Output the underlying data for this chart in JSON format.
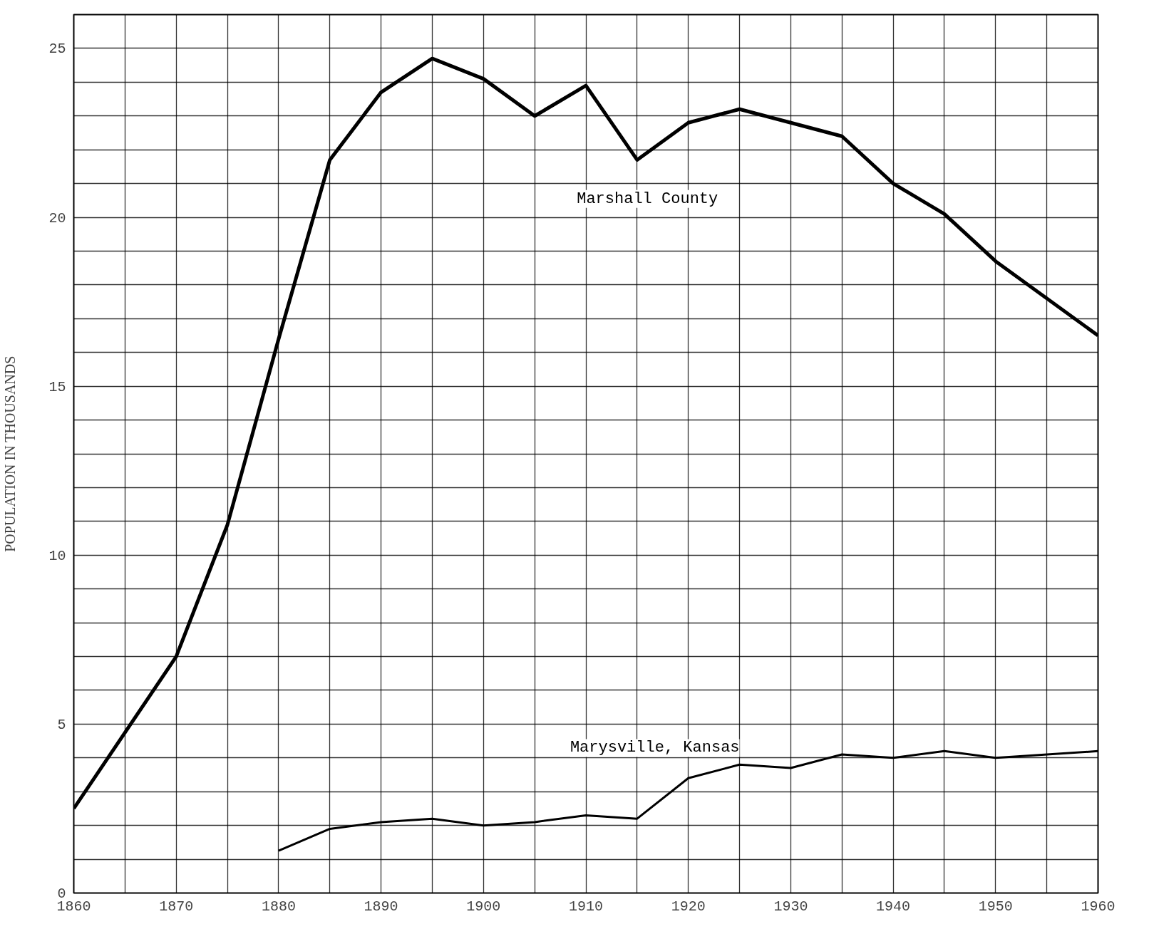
{
  "chart_data": {
    "type": "line",
    "ylabel": "POPULATION IN THOUSANDS",
    "grid": true,
    "marker": "none",
    "line_style": "solid",
    "xlim": [
      1860,
      1960
    ],
    "ylim": [
      0,
      26
    ],
    "xticks": [
      1860,
      {
        "value": 1865,
        "label": null
      },
      1870,
      {
        "value": 1875,
        "label": null
      },
      1880,
      {
        "value": 1885,
        "label": null
      },
      1890,
      {
        "value": 1895,
        "label": null
      },
      1900,
      {
        "value": 1905,
        "label": null
      },
      1910,
      {
        "value": 1915,
        "label": null
      },
      1920,
      {
        "value": 1925,
        "label": null
      },
      1930,
      {
        "value": 1935,
        "label": null
      },
      1940,
      {
        "value": 1945,
        "label": null
      },
      1950,
      {
        "value": 1955,
        "label": null
      },
      1960
    ],
    "yticks": [
      0,
      {
        "value": 1,
        "label": null
      },
      {
        "value": 2,
        "label": null
      },
      {
        "value": 3,
        "label": null
      },
      {
        "value": 4,
        "label": null
      },
      5,
      {
        "value": 6,
        "label": null
      },
      {
        "value": 7,
        "label": null
      },
      {
        "value": 8,
        "label": null
      },
      {
        "value": 9,
        "label": null
      },
      10,
      {
        "value": 11,
        "label": null
      },
      {
        "value": 12,
        "label": null
      },
      {
        "value": 13,
        "label": null
      },
      {
        "value": 14,
        "label": null
      },
      15,
      {
        "value": 16,
        "label": null
      },
      {
        "value": 17,
        "label": null
      },
      {
        "value": 18,
        "label": null
      },
      {
        "value": 19,
        "label": null
      },
      20,
      {
        "value": 21,
        "label": null
      },
      {
        "value": 22,
        "label": null
      },
      {
        "value": 23,
        "label": null
      },
      {
        "value": 24,
        "label": null
      },
      25,
      {
        "value": 26,
        "label": null
      }
    ],
    "series": [
      {
        "name": "Marshall County",
        "color": "#000000",
        "x": [
          1860,
          1870,
          1875,
          1880,
          1885,
          1890,
          1895,
          1900,
          1905,
          1910,
          1915,
          1920,
          1925,
          1935,
          1940,
          1945,
          1950,
          1960
        ],
        "values": [
          2.5,
          7.0,
          10.9,
          16.4,
          21.7,
          23.7,
          24.7,
          24.1,
          23.0,
          23.9,
          21.7,
          22.8,
          23.2,
          22.4,
          21.0,
          20.1,
          18.7,
          16.5
        ]
      },
      {
        "name": "Marysville, Kansas",
        "color": "#000000",
        "x": [
          1880,
          1885,
          1890,
          1895,
          1900,
          1905,
          1910,
          1915,
          1920,
          1925,
          1930,
          1935,
          1940,
          1945,
          1950,
          1960
        ],
        "values": [
          1.25,
          1.9,
          2.1,
          2.2,
          2.0,
          2.1,
          2.3,
          2.2,
          3.4,
          3.8,
          3.7,
          4.1,
          4.0,
          4.2,
          4.0,
          4.2
        ]
      }
    ]
  }
}
